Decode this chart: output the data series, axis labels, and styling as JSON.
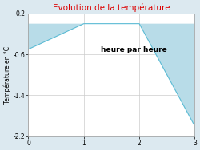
{
  "title": "Evolution de la température",
  "title_color": "#dd0000",
  "xlabel": "heure par heure",
  "ylabel": "Température en °C",
  "background_color": "#dce9f0",
  "plot_bg_color": "#ffffff",
  "fill_color": "#b8dce8",
  "line_color": "#5bbbd4",
  "xlim": [
    0,
    3
  ],
  "ylim": [
    -2.2,
    0.2
  ],
  "yticks": [
    0.2,
    -0.6,
    -1.4,
    -2.2
  ],
  "xticks": [
    0,
    1,
    2,
    3
  ],
  "x_data": [
    0,
    1,
    2,
    3
  ],
  "y_data": [
    -0.5,
    0.0,
    0.0,
    -2.0
  ],
  "zero_y": 0.0
}
